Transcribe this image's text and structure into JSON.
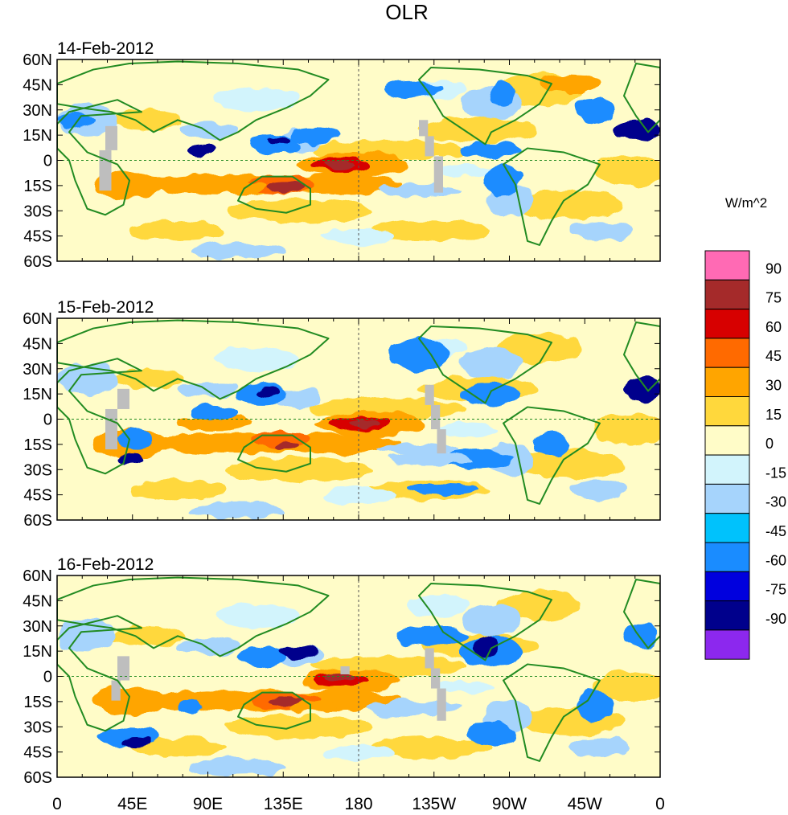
{
  "title": "OLR",
  "panels": [
    {
      "date": "14-Feb-2012"
    },
    {
      "date": "15-Feb-2012"
    },
    {
      "date": "16-Feb-2012"
    }
  ],
  "lat_labels": [
    "60N",
    "45N",
    "30N",
    "15N",
    "0",
    "15S",
    "30S",
    "45S",
    "60S"
  ],
  "lon_labels": [
    "0",
    "45E",
    "90E",
    "135E",
    "180",
    "135W",
    "90W",
    "45W",
    "0"
  ],
  "colorbar": {
    "units": "W/m^2",
    "levels": [
      "90",
      "75",
      "60",
      "45",
      "30",
      "15",
      "0",
      "-15",
      "-30",
      "-45",
      "-60",
      "-75",
      "-90"
    ],
    "colors": [
      "#ff6ab4",
      "#a52a2a",
      "#d70000",
      "#ff6a00",
      "#ffa500",
      "#ffd83c",
      "#fffcc8",
      "#d2f4fc",
      "#a6d4fc",
      "#00c2fc",
      "#1a8cff",
      "#0000de",
      "#00008c",
      "#8c28ee"
    ]
  },
  "map_colors": {
    "coast": "#228b22",
    "missing": "#bebebe",
    "ocean_base": "#fffcc8"
  }
}
